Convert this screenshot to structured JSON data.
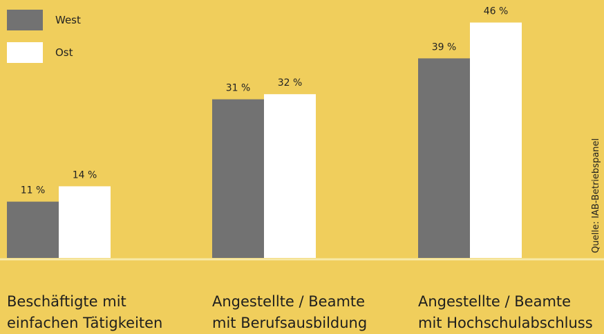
{
  "chart_data": {
    "type": "bar",
    "categories": [
      "Beschäftigte mit\neinfachen Tätigkeiten",
      "Angestellte / Beamte\nmit Berufsausbildung",
      "Angestellte / Beamte\nmit Hochschulabschluss"
    ],
    "series": [
      {
        "name": "West",
        "values": [
          11,
          31,
          39
        ],
        "labels": [
          "11 %",
          "31 %",
          "39 %"
        ],
        "color": "#727272"
      },
      {
        "name": "Ost",
        "values": [
          14,
          32,
          46
        ],
        "labels": [
          "14 %",
          "32 %",
          "46 %"
        ],
        "color": "#FFFFFF"
      }
    ],
    "ylim": [
      0,
      50
    ],
    "grid": false,
    "legend_position": "top-left",
    "source": "Quelle: IAB-Betriebspanel"
  },
  "colors": {
    "background": "#F0CE5C",
    "baseline": "#F7E9A8"
  }
}
